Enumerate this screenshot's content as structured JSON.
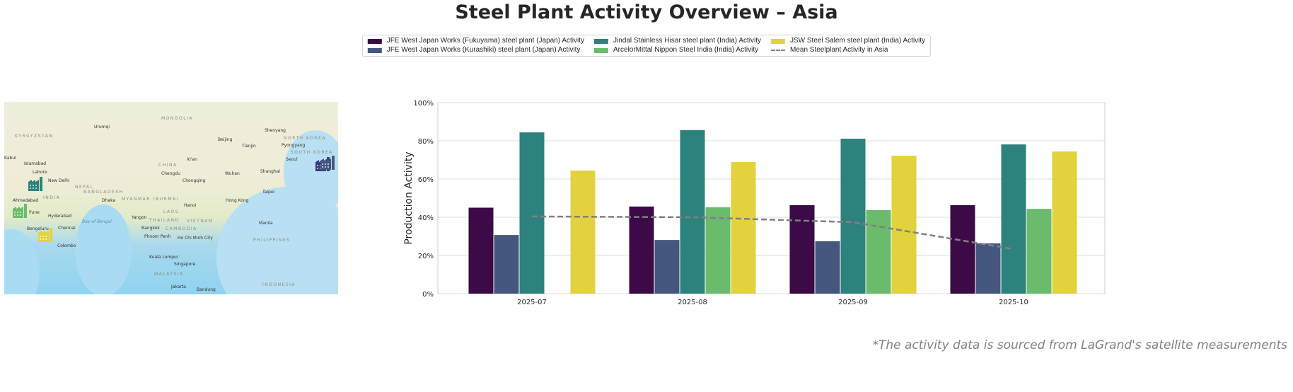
{
  "title": "Steel Plant Activity Overview – Asia",
  "footnote": "*The activity data is sourced from LaGrand's satellite measurements",
  "map": {
    "countries": [
      "MONGOLIA",
      "CHINA",
      "INDIA",
      "NEPAL",
      "BANGLADESH",
      "MYANMAR (BURMA)",
      "THAILAND",
      "LAOS",
      "VIETNAM",
      "CAMBODIA",
      "PHILIPPINES",
      "KYRGYZSTAN",
      "NORTH KOREA",
      "SOUTH KOREA",
      "MALAYSIA",
      "INDONESIA"
    ],
    "cities": [
      "Urumqi",
      "Beijing",
      "Tianjin",
      "Shenyang",
      "Pyongyang",
      "Seoul",
      "Islamabad",
      "Lahore",
      "New Delhi",
      "Xi'an",
      "Chengdu",
      "Chongqing",
      "Wuhan",
      "Shanghai",
      "Taipei",
      "Hong Kong",
      "Ahmedabad",
      "Pune",
      "Hyderabad",
      "Dhaka",
      "Hanoi",
      "Yangon",
      "Bangkok",
      "Phnom Penh",
      "Ho Chi Minh City",
      "Manila",
      "Bengaluru",
      "Chennai",
      "Colombo",
      "Kuala Lumpur",
      "Singapore",
      "Jakarta",
      "Bandung",
      "Kabul",
      "Bay of Bengal"
    ],
    "plant_icon": "factory-icon"
  },
  "chart_data": {
    "type": "bar",
    "title": "",
    "xlabel": "",
    "ylabel": "Production Activity",
    "ylim": [
      0,
      100
    ],
    "yticks": [
      "0%",
      "20%",
      "40%",
      "60%",
      "80%",
      "100%"
    ],
    "grid": true,
    "legend_placement": "top-center",
    "categories": [
      "2025-07",
      "2025-08",
      "2025-09",
      "2025-10"
    ],
    "series": [
      {
        "name": "JFE West Japan Works (Fukuyama) steel plant (Japan) Activity",
        "color": "#3b0a47",
        "values": [
          45,
          45.6,
          46.3,
          46.3
        ]
      },
      {
        "name": "JFE West Japan Works (Kurashiki) steel plant (Japan) Activity",
        "color": "#45577f",
        "values": [
          30.7,
          28.1,
          27.4,
          26.3
        ]
      },
      {
        "name": "Jindal Stainless Hisar steel plant (India) Activity",
        "color": "#2d827d",
        "values": [
          84.4,
          85.6,
          81.1,
          78.1
        ]
      },
      {
        "name": "ArcelorMittal Nippon Steel India (India) Activity",
        "color": "#6abc6c",
        "values": [
          null,
          45.2,
          43.7,
          44.4
        ]
      },
      {
        "name": "JSW Steel Salem steel plant (India) Activity",
        "color": "#e2d23d",
        "values": [
          64.4,
          68.9,
          72.2,
          74.4
        ]
      }
    ],
    "mean_line": {
      "name": "Mean Steelplant Activity in Asia",
      "color": "#808080",
      "style": "dashed",
      "values": [
        40.4,
        40,
        37.4,
        23.3
      ]
    }
  }
}
